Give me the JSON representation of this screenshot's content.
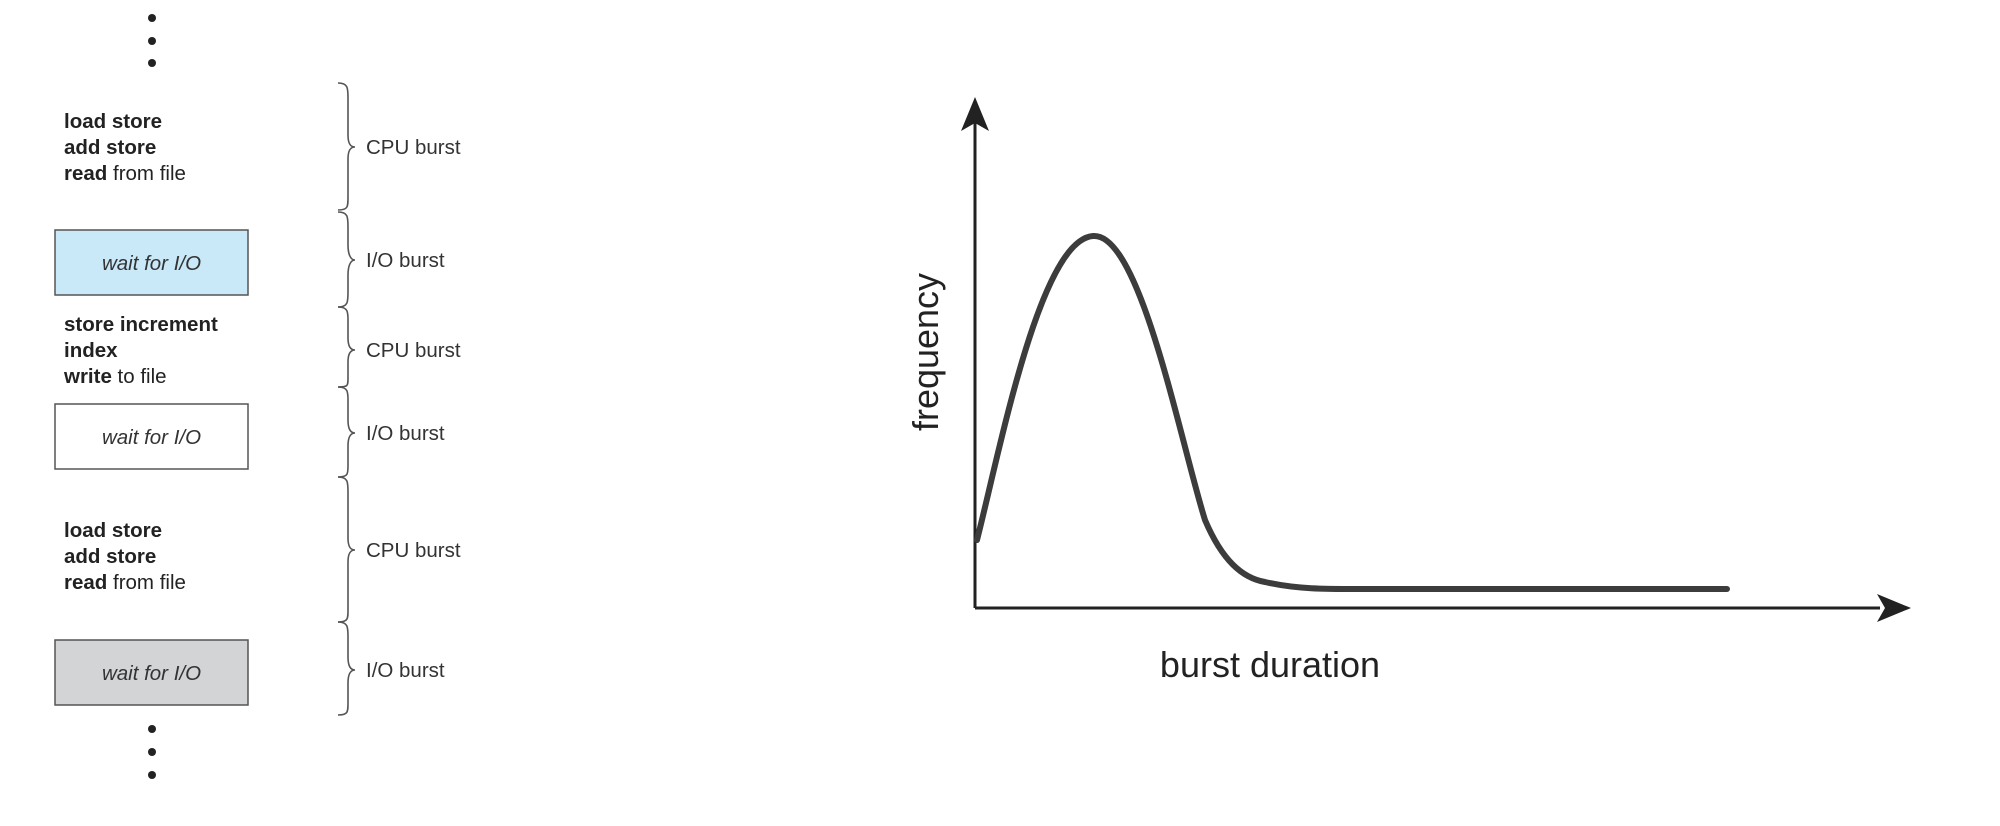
{
  "cpu_io_sequence": {
    "blocks": [
      {
        "type": "cpu",
        "lines": [
          [
            {
              "text": "load store",
              "bold": true
            }
          ],
          [
            {
              "text": "add store",
              "bold": true
            }
          ],
          [
            {
              "text": "read",
              "bold": true
            },
            {
              "text": " from file",
              "bold": false
            }
          ]
        ],
        "burst_label": "CPU burst"
      },
      {
        "type": "io",
        "text": "wait for I/O",
        "fill": "#c9e9f8",
        "burst_label": "I/O burst"
      },
      {
        "type": "cpu",
        "lines": [
          [
            {
              "text": "store increment",
              "bold": true
            }
          ],
          [
            {
              "text": "index",
              "bold": true
            }
          ],
          [
            {
              "text": "write",
              "bold": true
            },
            {
              "text": " to file",
              "bold": false
            }
          ]
        ],
        "burst_label": "CPU burst"
      },
      {
        "type": "io",
        "text": "wait for I/O",
        "fill": "#ffffff",
        "burst_label": "I/O burst"
      },
      {
        "type": "cpu",
        "lines": [
          [
            {
              "text": "load store",
              "bold": true
            }
          ],
          [
            {
              "text": "add store",
              "bold": true
            }
          ],
          [
            {
              "text": "read",
              "bold": true
            },
            {
              "text": " from file",
              "bold": false
            }
          ]
        ],
        "burst_label": "CPU burst"
      },
      {
        "type": "io",
        "text": "wait for I/O",
        "fill": "#d3d4d6",
        "burst_label": "I/O burst"
      }
    ]
  },
  "histogram": {
    "y_axis_label": "frequency",
    "x_axis_label": "burst duration",
    "curve_color": "#3c3c3c",
    "curve_shape": "sharp rise to a single early peak, steep fall, then long flat tail near zero"
  },
  "icons": {
    "ellipsis": "vertical-ellipsis-icon",
    "brace": "right-curly-brace-icon",
    "arrowhead": "arrowhead-icon"
  }
}
